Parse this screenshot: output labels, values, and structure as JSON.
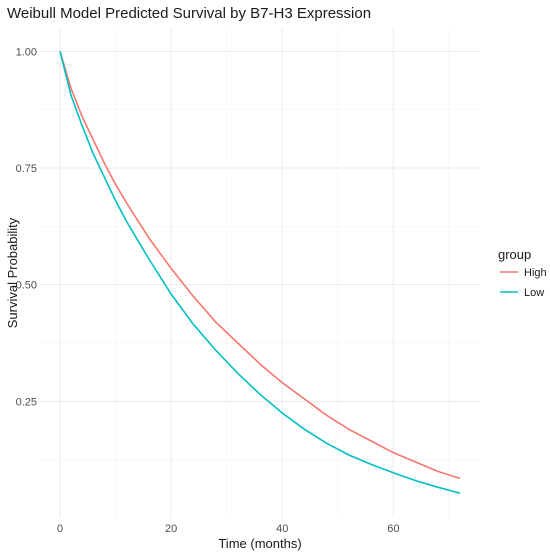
{
  "chart_data": {
    "type": "line",
    "title": "Weibull Model Predicted Survival by B7-H3 Expression",
    "xlabel": "Time (months)",
    "ylabel": "Survival Probability",
    "xlim": [
      0,
      72
    ],
    "ylim": [
      0.05,
      1.0
    ],
    "xticks": [
      0,
      20,
      40,
      60
    ],
    "yticks": [
      0.25,
      0.5,
      0.75,
      1.0
    ],
    "ytick_labels": [
      "0.25",
      "0.50",
      "0.75",
      "1.00"
    ],
    "grid": true,
    "legend": {
      "title": "group",
      "placement": "right"
    },
    "x": [
      0,
      2,
      4,
      6,
      8,
      10,
      12,
      16,
      20,
      24,
      28,
      32,
      36,
      40,
      44,
      48,
      52,
      56,
      60,
      64,
      68,
      72
    ],
    "series": [
      {
        "name": "High",
        "color": "#F8766D",
        "values": [
          1.0,
          0.92,
          0.86,
          0.81,
          0.76,
          0.715,
          0.675,
          0.6,
          0.535,
          0.475,
          0.42,
          0.375,
          0.33,
          0.29,
          0.255,
          0.22,
          0.19,
          0.165,
          0.14,
          0.12,
          0.1,
          0.085
        ]
      },
      {
        "name": "Low",
        "color": "#00BFC4",
        "values": [
          1.0,
          0.905,
          0.84,
          0.78,
          0.73,
          0.68,
          0.635,
          0.555,
          0.48,
          0.415,
          0.36,
          0.31,
          0.265,
          0.225,
          0.19,
          0.16,
          0.135,
          0.115,
          0.097,
          0.08,
          0.066,
          0.053
        ]
      }
    ]
  }
}
